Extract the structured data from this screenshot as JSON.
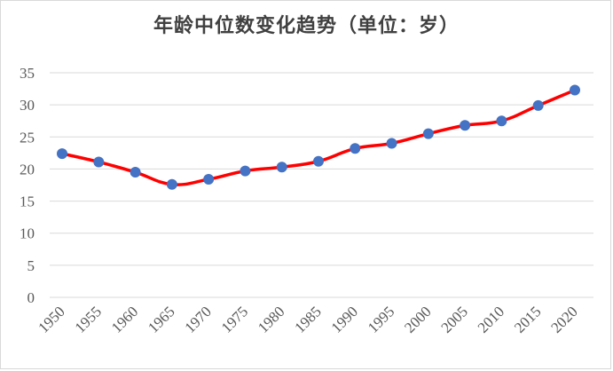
{
  "chart_data": {
    "type": "line",
    "title": "年龄中位数变化趋势（单位：岁）",
    "xlabel": "",
    "ylabel": "",
    "categories": [
      "1950",
      "1955",
      "1960",
      "1965",
      "1970",
      "1975",
      "1980",
      "1985",
      "1990",
      "1995",
      "2000",
      "2005",
      "2010",
      "2015",
      "2020"
    ],
    "series": [
      {
        "values": [
          22.4,
          21.1,
          19.5,
          17.6,
          18.4,
          19.7,
          20.3,
          21.2,
          23.2,
          24.0,
          25.5,
          26.8,
          27.5,
          29.9,
          32.3
        ],
        "line_color": "#ff0000",
        "marker_color": "#4472c4"
      }
    ],
    "ylim": [
      0,
      35
    ],
    "yticks": [
      "0",
      "5",
      "10",
      "15",
      "20",
      "25",
      "30",
      "35"
    ],
    "grid": true,
    "legend": "none",
    "gridline_color": "#d9d9d9",
    "label_color": "#595959"
  }
}
